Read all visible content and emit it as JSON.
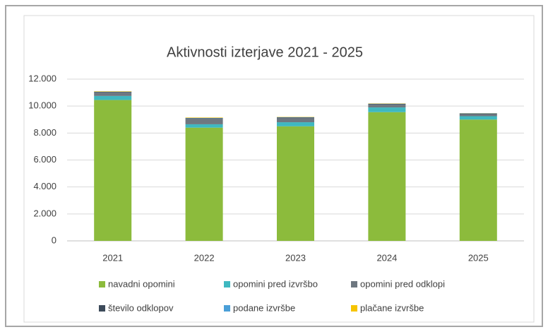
{
  "chart_data": {
    "type": "stacked_bar",
    "title": "Aktivnosti izterjave 2021 - 2025",
    "categories": [
      "2021",
      "2022",
      "2023",
      "2024",
      "2025"
    ],
    "series": [
      {
        "name": "navadni opomini",
        "color": "#8cbb3c",
        "values": [
          10450,
          8400,
          8500,
          9550,
          9000
        ]
      },
      {
        "name": "opomini pred izvršbo",
        "color": "#3fb8c0",
        "values": [
          300,
          250,
          300,
          350,
          250
        ]
      },
      {
        "name": "opomini pred odklopi",
        "color": "#6e7780",
        "values": [
          250,
          400,
          300,
          200,
          150
        ]
      },
      {
        "name": "število odklopov",
        "color": "#3c4a5a",
        "values": [
          50,
          50,
          60,
          60,
          50
        ]
      },
      {
        "name": "podane izvršbe",
        "color": "#4a9fd8",
        "values": [
          20,
          20,
          20,
          20,
          20
        ]
      },
      {
        "name": "plačane izvršbe",
        "color": "#f6c400",
        "values": [
          30,
          30,
          20,
          20,
          10
        ]
      }
    ],
    "ylim": [
      0,
      12000
    ],
    "yticks": [
      0,
      {
        "value": 2000,
        "label": "2.000"
      },
      {
        "value": 4000,
        "label": "4.000"
      },
      {
        "value": 6000,
        "label": "6.000"
      },
      {
        "value": 8000,
        "label": "8.000"
      },
      {
        "value": 10000,
        "label": "10.000"
      },
      {
        "value": 12000,
        "label": "12.000"
      }
    ],
    "grid": true
  }
}
